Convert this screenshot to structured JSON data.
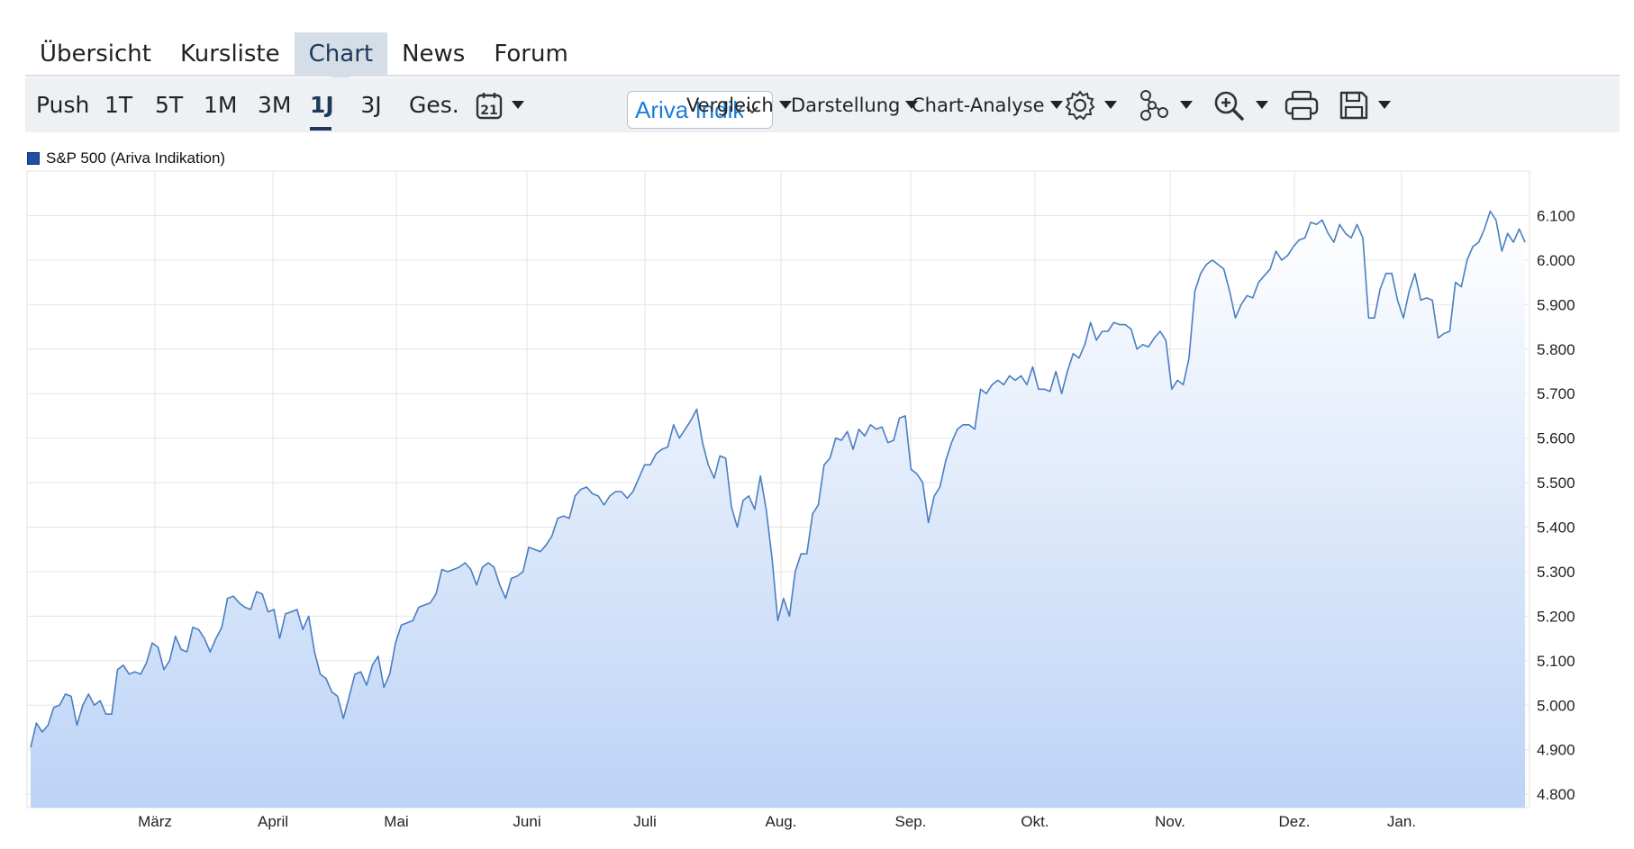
{
  "tabs": [
    {
      "label": "Übersicht",
      "active": false
    },
    {
      "label": "Kursliste",
      "active": false
    },
    {
      "label": "Chart",
      "active": true
    },
    {
      "label": "News",
      "active": false
    },
    {
      "label": "Forum",
      "active": false
    }
  ],
  "ranges": [
    {
      "label": "Push",
      "active": false
    },
    {
      "label": "1T",
      "active": false
    },
    {
      "label": "5T",
      "active": false
    },
    {
      "label": "1M",
      "active": false
    },
    {
      "label": "3M",
      "active": false
    },
    {
      "label": "1J",
      "active": true
    },
    {
      "label": "3J",
      "active": false
    },
    {
      "label": "Ges.",
      "active": false
    }
  ],
  "toolbar": {
    "calendar_day": "21",
    "source_select": "Ariva Indikation",
    "vergleich": "Vergleich",
    "darstellung": "Darstellung",
    "chart_analyse": "Chart-Analyse",
    "icons": [
      "calendar-icon",
      "gear-icon",
      "network-icon",
      "zoom-in-icon",
      "print-icon",
      "save-icon"
    ]
  },
  "chart_data": {
    "type": "area",
    "series": [
      {
        "name": "S&P 500 (Ariva Indikation)",
        "color": "#4a7ec2"
      }
    ],
    "y_ticks": [
      "6.100",
      "6.000",
      "5.900",
      "5.800",
      "5.700",
      "5.600",
      "5.500",
      "5.400",
      "5.300",
      "5.200",
      "5.100",
      "5.000",
      "4.900",
      "4.800"
    ],
    "ylim": [
      4770,
      6200
    ],
    "x_ticks": [
      "März",
      "April",
      "Mai",
      "Juni",
      "Juli",
      "Aug.",
      "Sep.",
      "Okt.",
      "Nov.",
      "Dez.",
      "Jan."
    ],
    "y_values": [
      4905,
      4960,
      4940,
      4955,
      4995,
      5000,
      5025,
      5020,
      4955,
      5000,
      5025,
      5000,
      5010,
      4980,
      4980,
      5080,
      5090,
      5070,
      5075,
      5070,
      5095,
      5140,
      5130,
      5080,
      5100,
      5155,
      5125,
      5120,
      5175,
      5170,
      5150,
      5120,
      5150,
      5175,
      5240,
      5245,
      5230,
      5220,
      5215,
      5255,
      5250,
      5210,
      5215,
      5150,
      5205,
      5210,
      5215,
      5170,
      5200,
      5120,
      5070,
      5060,
      5030,
      5020,
      4970,
      5020,
      5070,
      5075,
      5045,
      5090,
      5110,
      5040,
      5070,
      5140,
      5180,
      5185,
      5190,
      5220,
      5225,
      5230,
      5250,
      5305,
      5300,
      5305,
      5310,
      5320,
      5305,
      5270,
      5310,
      5320,
      5310,
      5270,
      5240,
      5285,
      5290,
      5300,
      5355,
      5350,
      5345,
      5360,
      5380,
      5420,
      5425,
      5420,
      5470,
      5485,
      5490,
      5475,
      5470,
      5450,
      5470,
      5480,
      5480,
      5465,
      5480,
      5510,
      5540,
      5540,
      5565,
      5575,
      5580,
      5630,
      5600,
      5620,
      5640,
      5665,
      5590,
      5540,
      5510,
      5560,
      5555,
      5445,
      5400,
      5460,
      5470,
      5440,
      5515,
      5440,
      5330,
      5190,
      5240,
      5200,
      5300,
      5340,
      5340,
      5430,
      5450,
      5540,
      5555,
      5600,
      5595,
      5615,
      5575,
      5620,
      5605,
      5630,
      5620,
      5625,
      5590,
      5595,
      5645,
      5650,
      5530,
      5520,
      5500,
      5410,
      5470,
      5490,
      5550,
      5590,
      5620,
      5630,
      5630,
      5620,
      5710,
      5700,
      5720,
      5730,
      5720,
      5740,
      5730,
      5740,
      5720,
      5760,
      5710,
      5710,
      5705,
      5750,
      5700,
      5750,
      5790,
      5780,
      5810,
      5860,
      5820,
      5840,
      5840,
      5860,
      5855,
      5855,
      5845,
      5800,
      5810,
      5805,
      5825,
      5840,
      5820,
      5710,
      5730,
      5720,
      5780,
      5930,
      5970,
      5990,
      6000,
      5990,
      5980,
      5930,
      5870,
      5900,
      5920,
      5915,
      5950,
      5965,
      5980,
      6020,
      6000,
      6010,
      6030,
      6045,
      6050,
      6085,
      6080,
      6090,
      6060,
      6040,
      6080,
      6060,
      6050,
      6080,
      6050,
      5870,
      5870,
      5935,
      5970,
      5970,
      5910,
      5870,
      5930,
      5970,
      5910,
      5915,
      5910,
      5825,
      5835,
      5840,
      5950,
      5940,
      6000,
      6030,
      6040,
      6070,
      6110,
      6090,
      6020,
      6060,
      6040,
      6070,
      6040
    ]
  }
}
